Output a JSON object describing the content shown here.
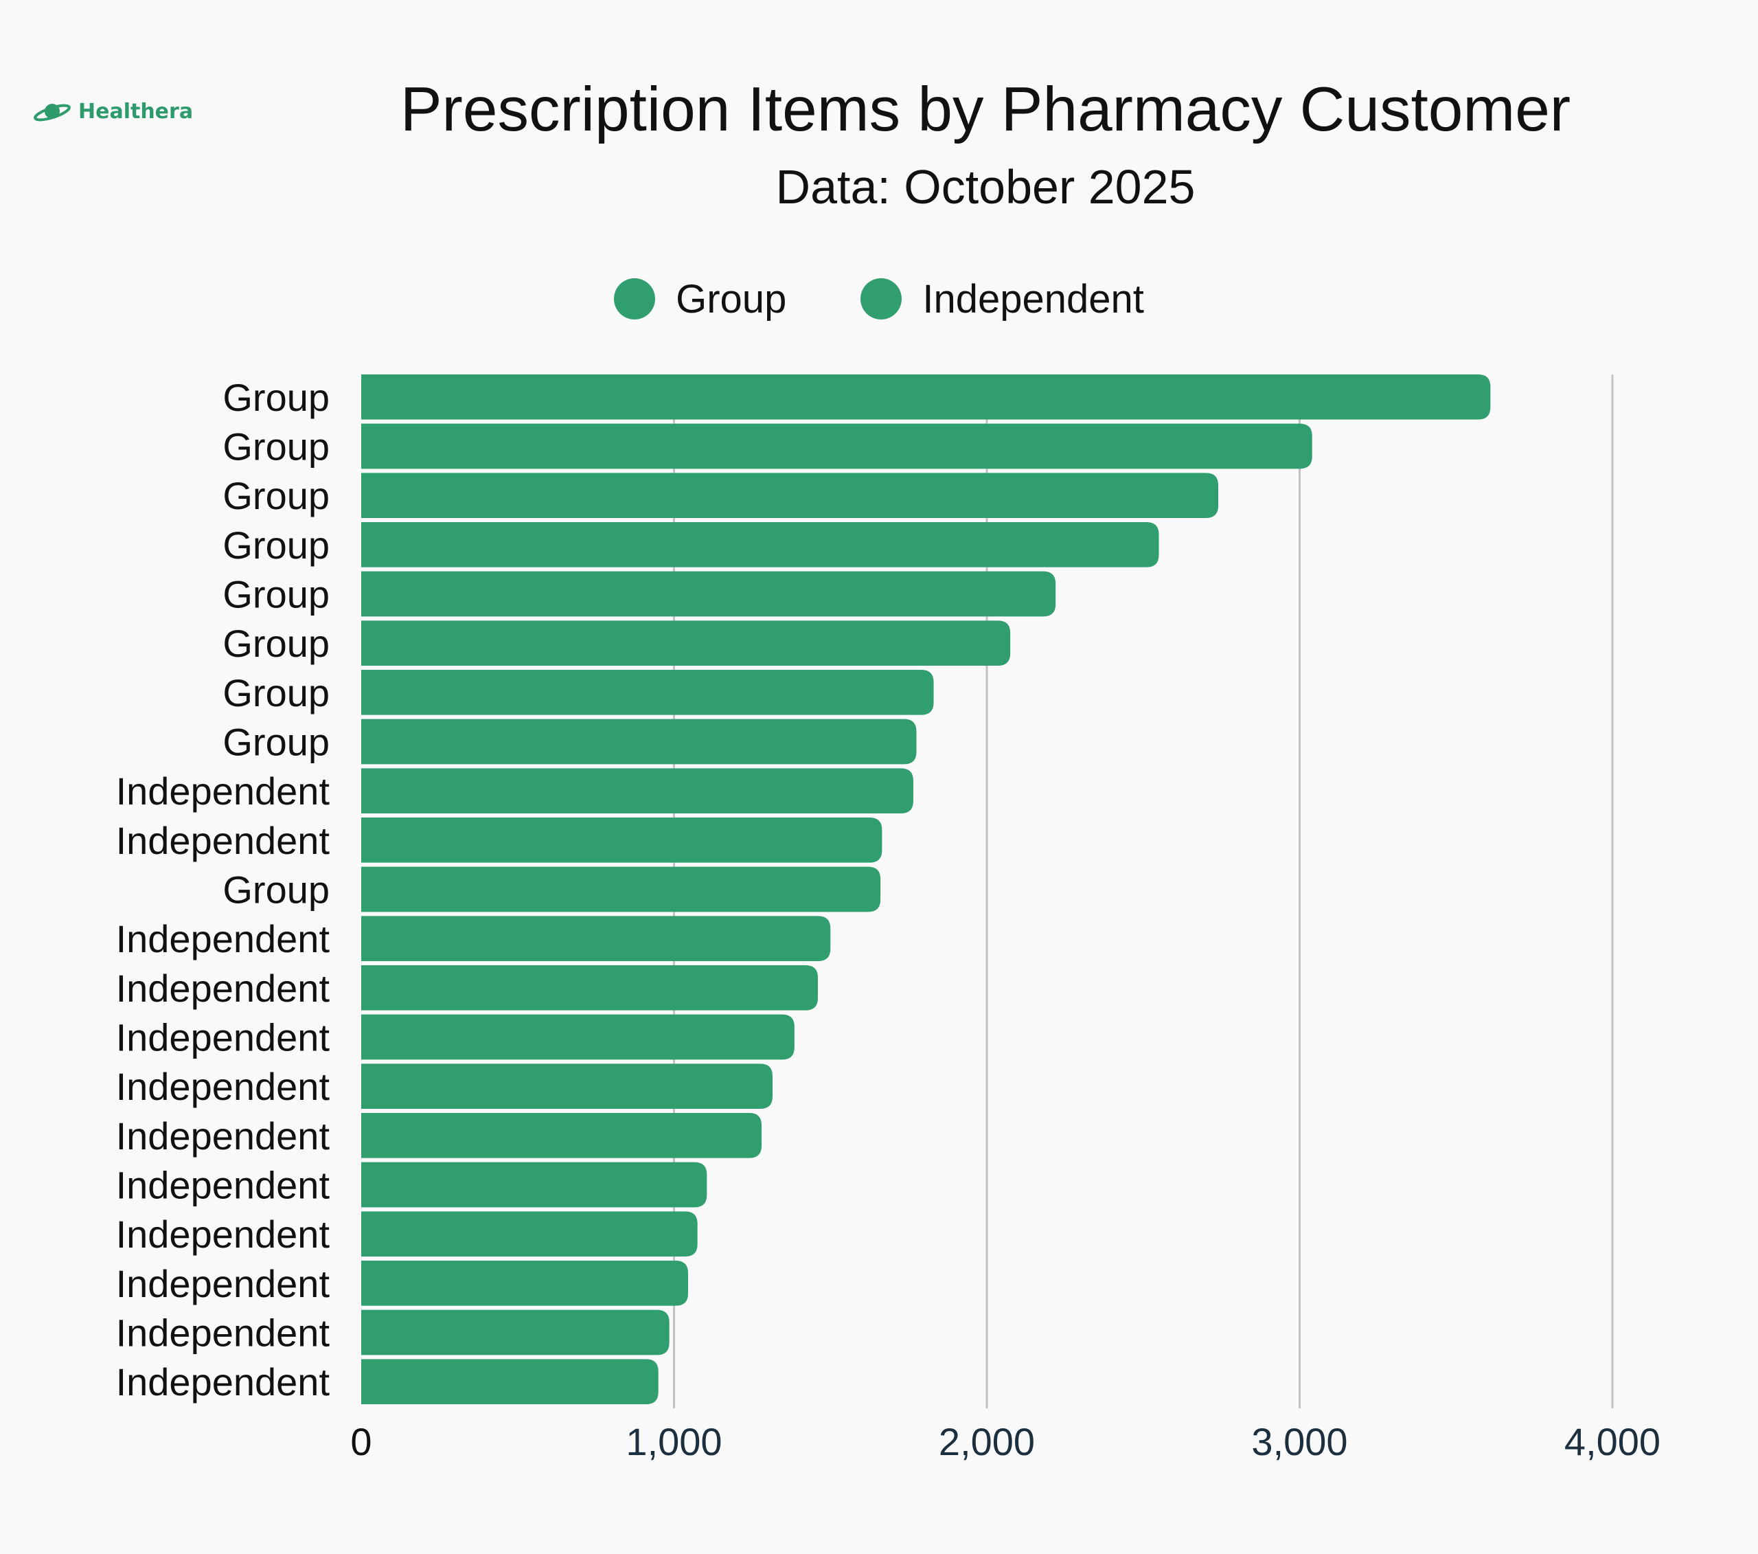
{
  "brand": {
    "name": "Healthera",
    "icon": "planet-icon"
  },
  "colors": {
    "bar": "#319e70",
    "grid": "#c2c2c2",
    "tick": "#1c2f3f",
    "text": "#111111"
  },
  "chart_data": {
    "type": "bar",
    "orientation": "horizontal",
    "title": "Prescription Items by Pharmacy Customer",
    "subtitle": "Data: October 2025",
    "legend": {
      "position": "top-center",
      "entries": [
        "Group",
        "Independent"
      ]
    },
    "xlim": [
      0,
      4000
    ],
    "xticks": [
      0,
      1000,
      2000,
      3000,
      4000
    ],
    "xtick_labels": [
      "0",
      "1,000",
      "2,000",
      "3,000",
      "4,000"
    ],
    "grid": "vertical",
    "categories": [
      "Group",
      "Group",
      "Group",
      "Group",
      "Group",
      "Group",
      "Group",
      "Group",
      "Independent",
      "Independent",
      "Group",
      "Independent",
      "Independent",
      "Independent",
      "Independent",
      "Independent",
      "Independent",
      "Independent",
      "Independent",
      "Independent",
      "Independent"
    ],
    "values": [
      3610,
      3040,
      2740,
      2550,
      2220,
      2075,
      1830,
      1775,
      1765,
      1665,
      1660,
      1500,
      1460,
      1385,
      1315,
      1280,
      1105,
      1075,
      1045,
      985,
      950
    ]
  }
}
